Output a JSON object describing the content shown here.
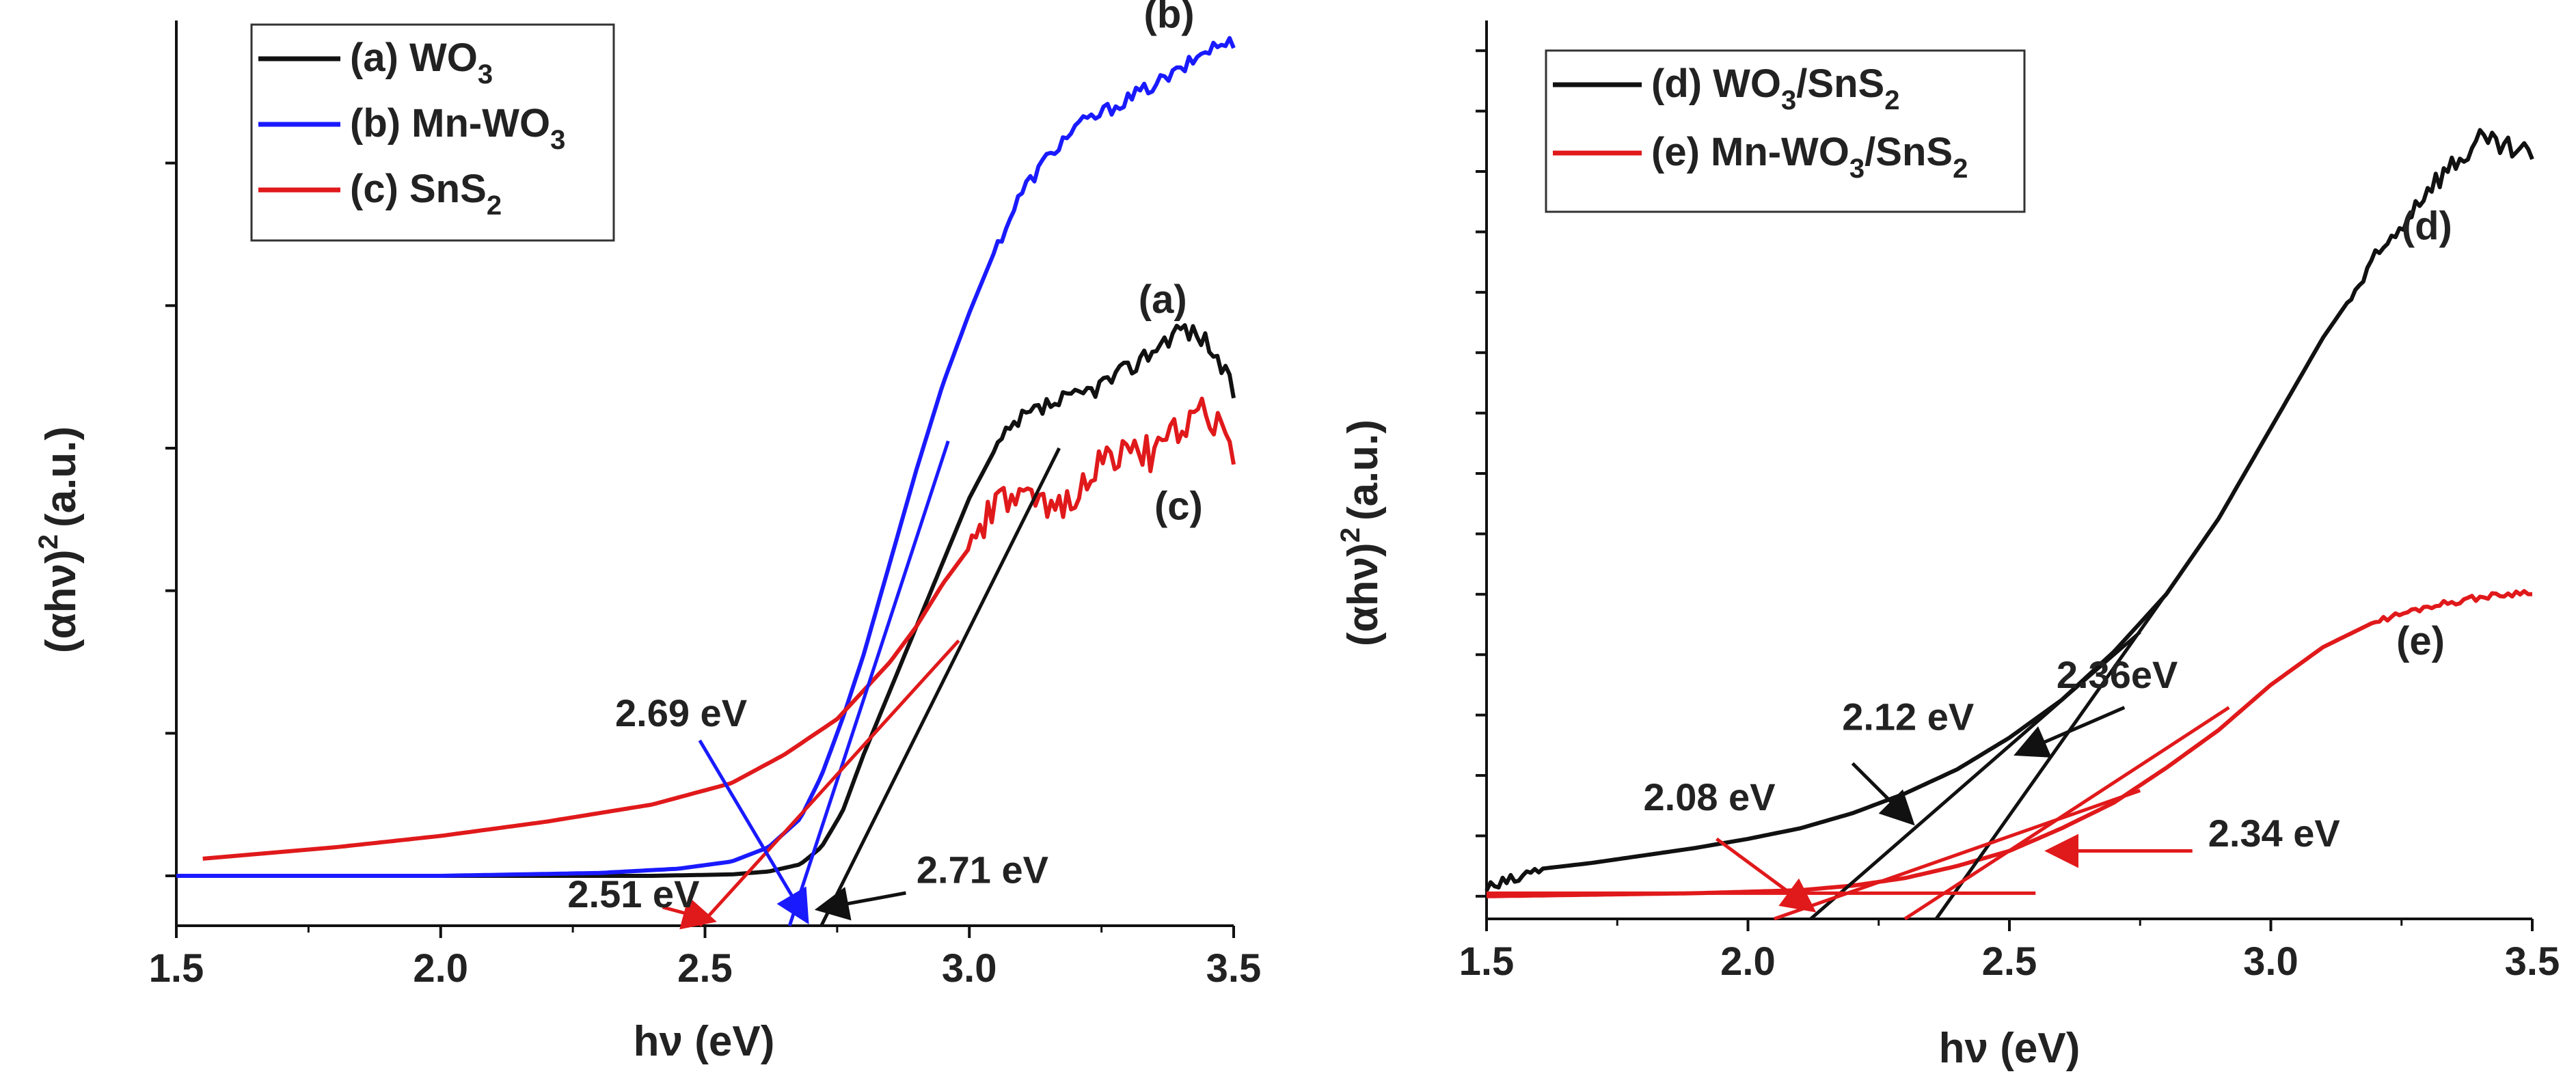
{
  "chart_data": [
    {
      "type": "line",
      "panel": "left",
      "xlabel": "hν (eV)",
      "ylabel": "(αhν)",
      "ylabel_suffix": "(a.u.)",
      "ylabel_sup": "2",
      "xlim": [
        1.5,
        3.5
      ],
      "ylim": [
        -0.35,
        6.0
      ],
      "xticks": [
        "1.5",
        "2.0",
        "2.5",
        "3.0",
        "3.5"
      ],
      "xtick_values": [
        1.5,
        2.0,
        2.5,
        3.0,
        3.5
      ],
      "ytick_values": [
        0,
        1,
        2,
        3,
        4,
        5
      ],
      "legend_position": "top-left",
      "legend": [
        {
          "base": "(a) WO",
          "sub": "3",
          "after": "",
          "color": "#111111"
        },
        {
          "base": "(b) Mn-WO",
          "sub": "3",
          "after": "",
          "color": "#1a1aff"
        },
        {
          "base": "(c) SnS",
          "sub": "2",
          "after": "",
          "color": "#e0191b"
        }
      ],
      "series": [
        {
          "name": "(a) WO3",
          "color": "#111111",
          "x": [
            1.5,
            2.0,
            2.4,
            2.55,
            2.62,
            2.68,
            2.72,
            2.76,
            2.8,
            2.85,
            2.9,
            2.95,
            3.0,
            3.05,
            3.1,
            3.15,
            3.2,
            3.25,
            3.3,
            3.35,
            3.4,
            3.45,
            3.5
          ],
          "y": [
            0.0,
            0.0,
            0.0,
            0.01,
            0.03,
            0.08,
            0.2,
            0.45,
            0.85,
            1.3,
            1.75,
            2.2,
            2.65,
            3.0,
            3.2,
            3.3,
            3.35,
            3.45,
            3.55,
            3.7,
            3.85,
            3.75,
            3.4
          ],
          "noise": 0.07,
          "noise_from": 3.05
        },
        {
          "name": "(b) Mn-WO3",
          "color": "#1a1aff",
          "x": [
            1.5,
            2.0,
            2.3,
            2.45,
            2.55,
            2.62,
            2.68,
            2.72,
            2.76,
            2.8,
            2.85,
            2.9,
            2.95,
            3.0,
            3.05,
            3.1,
            3.15,
            3.2,
            3.25,
            3.3,
            3.35,
            3.4,
            3.45,
            3.5
          ],
          "y": [
            0.0,
            0.0,
            0.02,
            0.05,
            0.1,
            0.2,
            0.4,
            0.7,
            1.1,
            1.55,
            2.2,
            2.85,
            3.45,
            3.95,
            4.4,
            4.8,
            5.05,
            5.25,
            5.35,
            5.45,
            5.55,
            5.65,
            5.8,
            5.85
          ],
          "noise": 0.05,
          "noise_from": 3.05
        },
        {
          "name": "(c) SnS2",
          "color": "#e0191b",
          "x": [
            1.55,
            1.8,
            2.0,
            2.2,
            2.4,
            2.55,
            2.65,
            2.75,
            2.85,
            2.9,
            2.95,
            3.0,
            3.05,
            3.1,
            3.15,
            3.2,
            3.25,
            3.3,
            3.35,
            3.4,
            3.45,
            3.5
          ],
          "y": [
            0.12,
            0.2,
            0.28,
            0.38,
            0.5,
            0.65,
            0.85,
            1.1,
            1.5,
            1.75,
            2.05,
            2.3,
            2.6,
            2.65,
            2.55,
            2.7,
            2.9,
            3.0,
            2.95,
            3.15,
            3.25,
            3.0
          ],
          "noise": 0.12,
          "noise_from": 3.0
        }
      ],
      "fit_lines": [
        {
          "color": "#111111",
          "x": [
            2.72,
            3.17
          ],
          "y": [
            -0.35,
            3.0
          ]
        },
        {
          "color": "#1a1aff",
          "x": [
            2.66,
            2.96
          ],
          "y": [
            -0.35,
            3.05
          ]
        },
        {
          "color": "#e0191b",
          "x": [
            2.49,
            2.98
          ],
          "y": [
            -0.35,
            1.65
          ]
        }
      ],
      "curve_labels": [
        {
          "text": "(a)",
          "x": 3.32,
          "y": 3.95
        },
        {
          "text": "(b)",
          "x": 3.33,
          "y": 5.95
        },
        {
          "text": "(c)",
          "x": 3.35,
          "y": 2.5
        }
      ],
      "annotations": [
        {
          "text": "2.69 eV",
          "color": "#1a1aff",
          "text_x": 2.33,
          "text_y": 1.05,
          "tip_x": 2.69,
          "tip_y": -0.3,
          "tail_x": 2.49,
          "tail_y": 0.95
        },
        {
          "text": "2.71 eV",
          "color": "#111111",
          "text_x": 2.9,
          "text_y": -0.05,
          "tip_x": 2.72,
          "tip_y": -0.23,
          "tail_x": 2.88,
          "tail_y": -0.12
        },
        {
          "text": "2.51 eV",
          "color": "#e0191b",
          "text_x": 2.24,
          "text_y": -0.22,
          "tip_x": 2.51,
          "tip_y": -0.31,
          "tail_x": 2.42,
          "tail_y": -0.22
        }
      ]
    },
    {
      "type": "line",
      "panel": "right",
      "xlabel": "hν (eV)",
      "ylabel": "(αhν)",
      "ylabel_suffix": "(a.u.)",
      "ylabel_sup": "2",
      "xlim": [
        1.5,
        3.5
      ],
      "ylim": [
        -0.15,
        5.8
      ],
      "xticks": [
        "1.5",
        "2.0",
        "2.5",
        "3.0",
        "3.5"
      ],
      "xtick_values": [
        1.5,
        2.0,
        2.5,
        3.0,
        3.5
      ],
      "ytick_values": [
        0,
        0.4,
        0.8,
        1.2,
        1.6,
        2.0,
        2.4,
        2.8,
        3.2,
        3.6,
        4.0,
        4.4,
        4.8,
        5.2,
        5.6
      ],
      "legend_position": "top-left",
      "legend": [
        {
          "base": "(d) WO",
          "sub": "3",
          "after": "/SnS",
          "sub2": "2",
          "color": "#111111"
        },
        {
          "base": "(e) Mn-WO",
          "sub": "3",
          "after": "/SnS",
          "sub2": "2",
          "color": "#e0191b"
        }
      ],
      "series": [
        {
          "name": "(d) WO3/SnS2",
          "color": "#111111",
          "x": [
            1.5,
            1.55,
            1.6,
            1.7,
            1.8,
            1.9,
            2.0,
            2.1,
            2.2,
            2.3,
            2.4,
            2.5,
            2.6,
            2.7,
            2.8,
            2.9,
            3.0,
            3.1,
            3.2,
            3.3,
            3.35,
            3.4,
            3.45,
            3.5
          ],
          "y": [
            0.05,
            0.1,
            0.18,
            0.22,
            0.27,
            0.32,
            0.38,
            0.45,
            0.55,
            0.68,
            0.84,
            1.05,
            1.3,
            1.62,
            2.0,
            2.5,
            3.1,
            3.7,
            4.2,
            4.7,
            4.85,
            5.0,
            4.95,
            4.9
          ],
          "noise": 0.08,
          "noise_from": 3.15,
          "noise2": 0.05,
          "noise2_to": 1.6
        },
        {
          "name": "(e) Mn-WO3/SnS2",
          "color": "#e0191b",
          "x": [
            1.5,
            1.7,
            1.9,
            2.1,
            2.2,
            2.3,
            2.4,
            2.5,
            2.6,
            2.7,
            2.8,
            2.9,
            3.0,
            3.1,
            3.2,
            3.3,
            3.4,
            3.5
          ],
          "y": [
            0.0,
            0.01,
            0.02,
            0.04,
            0.07,
            0.12,
            0.2,
            0.3,
            0.45,
            0.62,
            0.85,
            1.1,
            1.4,
            1.65,
            1.82,
            1.92,
            1.98,
            2.02
          ],
          "noise": 0.02,
          "noise_from": 3.2
        }
      ],
      "fit_lines": [
        {
          "color": "#111111",
          "x": [
            2.12,
            2.75
          ],
          "y": [
            -0.15,
            1.75
          ]
        },
        {
          "color": "#111111",
          "x": [
            2.36,
            2.83
          ],
          "y": [
            -0.15,
            2.15
          ]
        },
        {
          "color": "#e0191b",
          "x": [
            1.5,
            2.55
          ],
          "y": [
            0.02,
            0.02
          ]
        },
        {
          "color": "#e0191b",
          "x": [
            2.05,
            2.75
          ],
          "y": [
            -0.15,
            0.7
          ]
        },
        {
          "color": "#e0191b",
          "x": [
            2.3,
            2.92
          ],
          "y": [
            -0.15,
            1.25
          ]
        }
      ],
      "curve_labels": [
        {
          "text": "(d)",
          "x": 3.25,
          "y": 4.35
        },
        {
          "text": "(e)",
          "x": 3.24,
          "y": 1.6
        }
      ],
      "annotations": [
        {
          "text": "2.08 eV",
          "color": "#e0191b",
          "text_x": 1.8,
          "text_y": 0.57,
          "tip_x": 2.12,
          "tip_y": -0.08,
          "tail_x": 1.94,
          "tail_y": 0.38
        },
        {
          "text": "2.12 eV",
          "color": "#111111",
          "text_x": 2.18,
          "text_y": 1.1,
          "tip_x": 2.31,
          "tip_y": 0.5,
          "tail_x": 2.2,
          "tail_y": 0.88
        },
        {
          "text": "2.36eV",
          "color": "#111111",
          "text_x": 2.59,
          "text_y": 1.38,
          "tip_x": 2.52,
          "tip_y": 0.95,
          "tail_x": 2.72,
          "tail_y": 1.25
        },
        {
          "text": "2.34 eV",
          "color": "#e0191b",
          "text_x": 2.88,
          "text_y": 0.33,
          "tip_x": 2.58,
          "tip_y": 0.3,
          "tail_x": 2.85,
          "tail_y": 0.3
        }
      ]
    }
  ]
}
